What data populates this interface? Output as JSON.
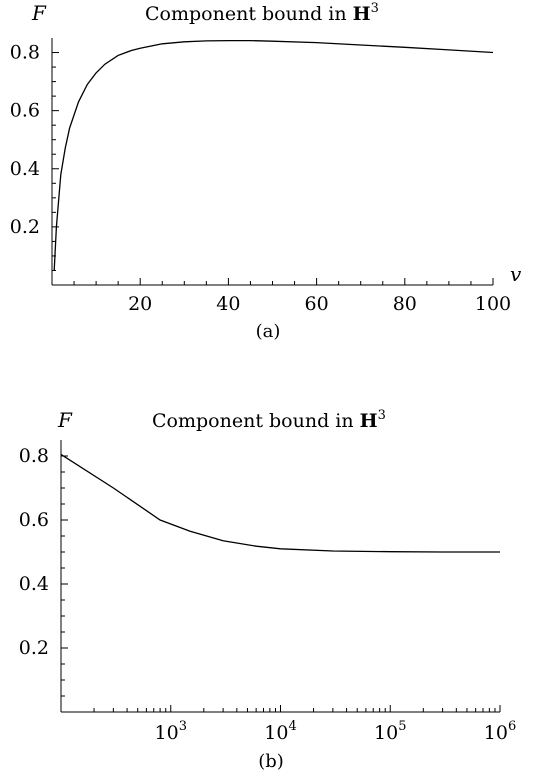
{
  "chart_data": [
    {
      "id": "a",
      "type": "line",
      "title_text": "Component bound in ",
      "title_symbol": "H",
      "title_sup": "3",
      "ylabel": "F",
      "xlabel": "v",
      "caption": "(a)",
      "xscale": "linear",
      "xlim": [
        0,
        100
      ],
      "ylim": [
        0,
        0.85
      ],
      "xticks": [
        20,
        40,
        60,
        80,
        100
      ],
      "yticks": [
        0.2,
        0.4,
        0.6,
        0.8
      ],
      "grid": false,
      "series": [
        {
          "x": [
            0.5,
            1,
            2,
            3,
            4,
            6,
            8,
            10,
            12,
            15,
            18,
            20,
            25,
            30,
            35,
            40,
            45,
            50,
            60,
            70,
            80,
            90,
            100
          ],
          "y": [
            0.05,
            0.2,
            0.38,
            0.47,
            0.54,
            0.63,
            0.69,
            0.73,
            0.76,
            0.79,
            0.807,
            0.815,
            0.83,
            0.837,
            0.84,
            0.841,
            0.841,
            0.839,
            0.834,
            0.826,
            0.818,
            0.809,
            0.8
          ]
        }
      ]
    },
    {
      "id": "b",
      "type": "line",
      "title_text": "Component bound in ",
      "title_symbol": "H",
      "title_sup": "3",
      "ylabel": "F",
      "caption": "(b)",
      "xscale": "log",
      "xlim": [
        100,
        1000000
      ],
      "ylim": [
        0,
        0.85
      ],
      "xticks": [
        {
          "value": 1000,
          "base": "10",
          "exp": "3"
        },
        {
          "value": 10000,
          "base": "10",
          "exp": "4"
        },
        {
          "value": 100000,
          "base": "10",
          "exp": "5"
        },
        {
          "value": 1000000,
          "base": "10",
          "exp": "6"
        }
      ],
      "yticks": [
        0.2,
        0.4,
        0.6,
        0.8
      ],
      "grid": false,
      "series": [
        {
          "x": [
            100,
            300,
            800,
            1500,
            3000,
            6000,
            10000,
            30000,
            100000,
            300000,
            1000000
          ],
          "y": [
            0.805,
            0.7,
            0.6,
            0.565,
            0.535,
            0.518,
            0.51,
            0.503,
            0.501,
            0.5,
            0.5
          ]
        }
      ]
    }
  ]
}
